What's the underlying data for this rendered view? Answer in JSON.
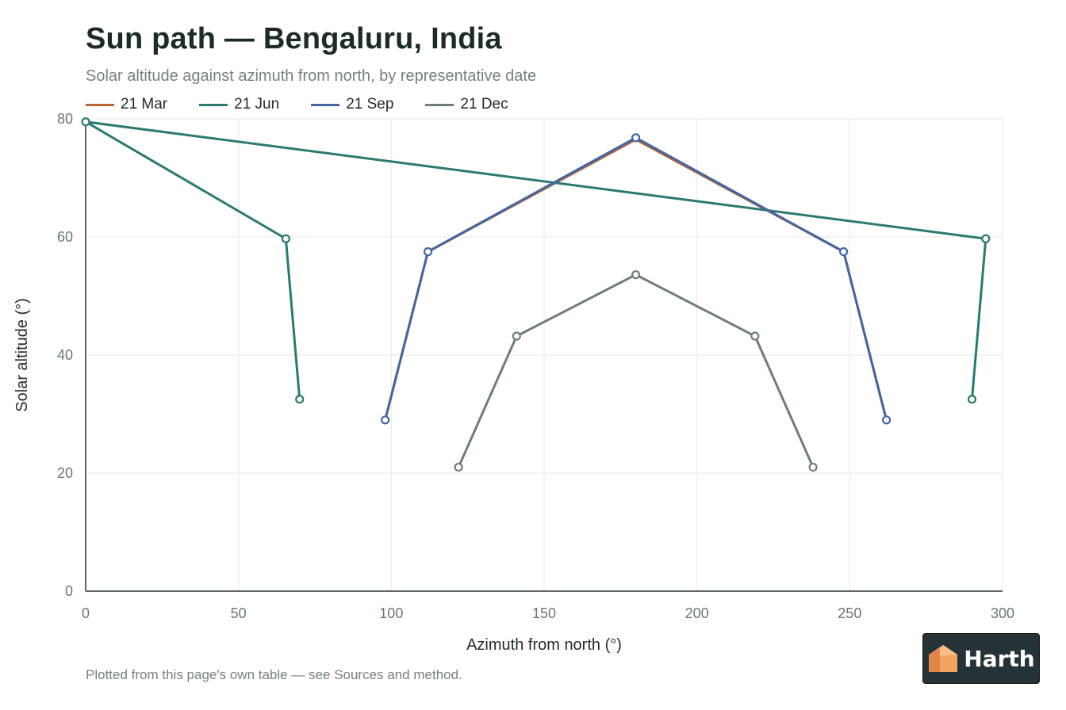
{
  "chart_data": {
    "type": "line",
    "title": "Sun path — Bengaluru, India",
    "subtitle": "Solar altitude against azimuth from north, by representative date",
    "xlabel": "Azimuth from north (°)",
    "ylabel": "Solar altitude (°)",
    "xlim": [
      0,
      300
    ],
    "ylim": [
      0,
      80
    ],
    "xticks": [
      0,
      50,
      100,
      150,
      200,
      250,
      300
    ],
    "yticks": [
      0,
      20,
      40,
      60,
      80
    ],
    "grid": true,
    "legend": "top-left",
    "series": [
      {
        "name": "21 Mar",
        "color": "#b8653a",
        "x": [
          98,
          112,
          180,
          248,
          262
        ],
        "y": [
          29,
          57.5,
          76.5,
          57.5,
          29
        ],
        "markers": false
      },
      {
        "name": "21 Jun",
        "color": "#2b7a70",
        "x": [
          70,
          65.5,
          0,
          294.5,
          290
        ],
        "y": [
          32.5,
          59.7,
          79.5,
          59.7,
          32.5
        ],
        "markers": true
      },
      {
        "name": "21 Sep",
        "color": "#4466a0",
        "x": [
          98,
          112,
          180,
          248,
          262
        ],
        "y": [
          29,
          57.5,
          76.8,
          57.5,
          29
        ],
        "markers": true
      },
      {
        "name": "21 Dec",
        "color": "#6e7d78",
        "x": [
          122,
          141,
          180,
          219,
          238
        ],
        "y": [
          21,
          43.2,
          53.6,
          43.2,
          21
        ],
        "markers": true
      }
    ]
  },
  "footnote": "Plotted from this page's own table — see Sources and method.",
  "logo": {
    "text": "Harth",
    "icon": "house-cube-icon",
    "colors": [
      "#f2a35e",
      "#e2854a"
    ]
  }
}
